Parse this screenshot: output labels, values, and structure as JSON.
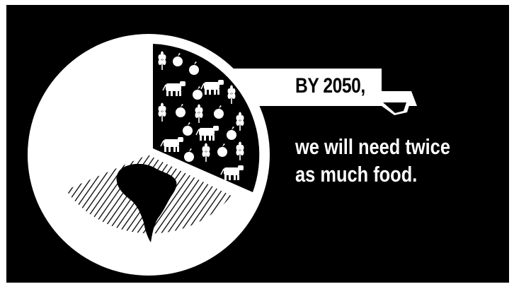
{
  "headline": "BY 2050,",
  "body_lines": [
    "we will need twice",
    "as much food."
  ],
  "colors": {
    "background": "#000000",
    "foreground": "#ffffff"
  },
  "icons": [
    "wheat-icon",
    "apple-icon",
    "cow-icon",
    "earth-continent-icon"
  ]
}
